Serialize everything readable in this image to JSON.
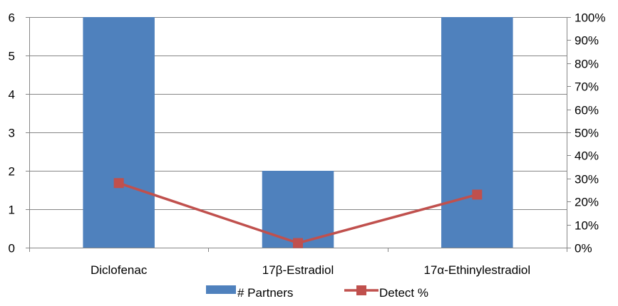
{
  "chart_data": {
    "type": "bar",
    "categories": [
      "Diclofenac",
      "17β-Estradiol",
      "17α-Ethinylestradiol"
    ],
    "series": [
      {
        "name": "# Partners",
        "type": "bar",
        "axis": "left",
        "values": [
          6,
          2,
          6
        ],
        "color": "#4F81BD"
      },
      {
        "name": "Detect %",
        "type": "line",
        "axis": "right",
        "values": [
          0.28,
          0.02,
          0.23
        ],
        "color": "#C0504D",
        "marker": "square"
      }
    ],
    "y_left": {
      "min": 0,
      "max": 6,
      "ticks": [
        "0",
        "1",
        "2",
        "3",
        "4",
        "5",
        "6"
      ]
    },
    "y_right": {
      "min": 0,
      "max": 1,
      "ticks": [
        "0%",
        "10%",
        "20%",
        "30%",
        "40%",
        "50%",
        "60%",
        "70%",
        "80%",
        "90%",
        "100%"
      ]
    },
    "grid": true,
    "legend": "bottom",
    "title": "",
    "xlabel": "",
    "ylabel": ""
  }
}
